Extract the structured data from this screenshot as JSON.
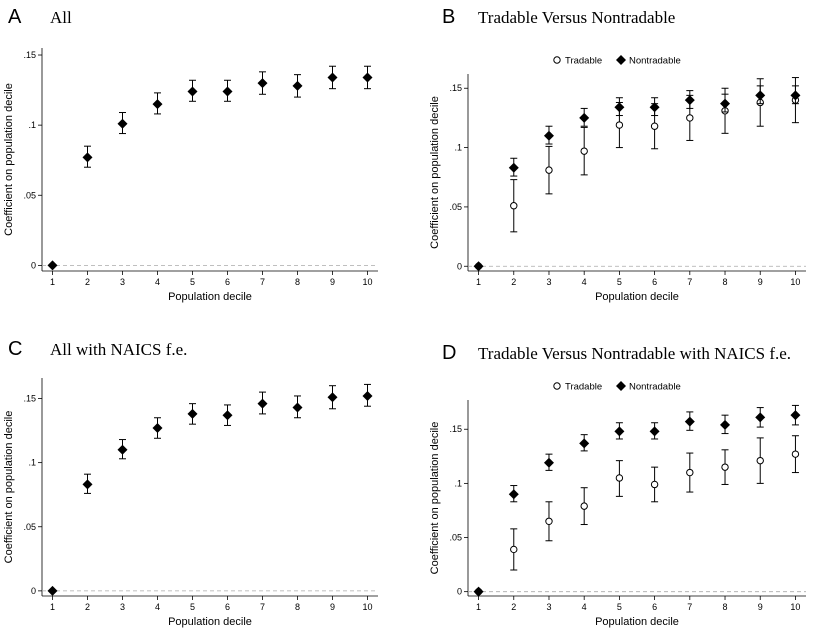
{
  "chart_data": [
    {
      "type": "scatter",
      "panel_letter": "A",
      "title": "All",
      "xlabel": "Population decile",
      "ylabel": "Coefficient on population decile",
      "x": [
        1,
        2,
        3,
        4,
        5,
        6,
        7,
        8,
        9,
        10
      ],
      "xlim": [
        0.7,
        10.3
      ],
      "ylim": [
        -0.004,
        0.155
      ],
      "yticks": [
        0,
        0.05,
        0.1,
        0.15
      ],
      "ytick_labels": [
        "0",
        ".05",
        ".1",
        ".15"
      ],
      "legend": false,
      "series": [
        {
          "marker": "diamond",
          "values": [
            0,
            0.077,
            0.101,
            0.115,
            0.124,
            0.124,
            0.13,
            0.128,
            0.134,
            0.134
          ],
          "lower": [
            0,
            0.07,
            0.094,
            0.108,
            0.117,
            0.117,
            0.122,
            0.12,
            0.126,
            0.126
          ],
          "upper": [
            0,
            0.085,
            0.109,
            0.123,
            0.132,
            0.132,
            0.138,
            0.136,
            0.142,
            0.142
          ]
        }
      ]
    },
    {
      "type": "scatter",
      "panel_letter": "B",
      "title": "Tradable Versus Nontradable",
      "xlabel": "Population decile",
      "ylabel": "Coefficient on population decile",
      "x": [
        1,
        2,
        3,
        4,
        5,
        6,
        7,
        8,
        9,
        10
      ],
      "xlim": [
        0.7,
        10.3
      ],
      "ylim": [
        -0.004,
        0.162
      ],
      "yticks": [
        0,
        0.05,
        0.1,
        0.15
      ],
      "ytick_labels": [
        "0",
        ".05",
        ".1",
        ".15"
      ],
      "legend": "top-center",
      "series": [
        {
          "name": "Tradable",
          "marker": "circle",
          "values": [
            0,
            0.051,
            0.081,
            0.097,
            0.119,
            0.118,
            0.125,
            0.131,
            0.138,
            0.14
          ],
          "lower": [
            0,
            0.029,
            0.061,
            0.077,
            0.1,
            0.099,
            0.106,
            0.112,
            0.118,
            0.121
          ],
          "upper": [
            0,
            0.073,
            0.101,
            0.117,
            0.138,
            0.137,
            0.144,
            0.15,
            0.158,
            0.159
          ]
        },
        {
          "name": "Nontradable",
          "marker": "diamond",
          "values": [
            0,
            0.083,
            0.11,
            0.125,
            0.134,
            0.134,
            0.14,
            0.137,
            0.144,
            0.144
          ],
          "lower": [
            0,
            0.076,
            0.103,
            0.118,
            0.127,
            0.127,
            0.133,
            0.13,
            0.137,
            0.137
          ],
          "upper": [
            0,
            0.091,
            0.118,
            0.133,
            0.142,
            0.142,
            0.148,
            0.145,
            0.152,
            0.152
          ]
        }
      ]
    },
    {
      "type": "scatter",
      "panel_letter": "C",
      "title": "All with NAICS f.e.",
      "xlabel": "Population decile",
      "ylabel": "Coefficient on population decile",
      "x": [
        1,
        2,
        3,
        4,
        5,
        6,
        7,
        8,
        9,
        10
      ],
      "xlim": [
        0.7,
        10.3
      ],
      "ylim": [
        -0.004,
        0.166
      ],
      "yticks": [
        0,
        0.05,
        0.1,
        0.15
      ],
      "ytick_labels": [
        "0",
        ".05",
        ".1",
        ".15"
      ],
      "legend": false,
      "series": [
        {
          "marker": "diamond",
          "values": [
            0,
            0.083,
            0.11,
            0.127,
            0.138,
            0.137,
            0.146,
            0.143,
            0.151,
            0.152
          ],
          "lower": [
            0,
            0.076,
            0.103,
            0.119,
            0.13,
            0.129,
            0.138,
            0.135,
            0.142,
            0.144
          ],
          "upper": [
            0,
            0.091,
            0.118,
            0.135,
            0.146,
            0.145,
            0.155,
            0.152,
            0.16,
            0.161
          ]
        }
      ]
    },
    {
      "type": "scatter",
      "panel_letter": "D",
      "title": "Tradable Versus Nontradable with NAICS f.e.",
      "xlabel": "Population decile",
      "ylabel": "Coefficient on population decile",
      "x": [
        1,
        2,
        3,
        4,
        5,
        6,
        7,
        8,
        9,
        10
      ],
      "xlim": [
        0.7,
        10.3
      ],
      "ylim": [
        -0.004,
        0.177
      ],
      "yticks": [
        0,
        0.05,
        0.1,
        0.15
      ],
      "ytick_labels": [
        "0",
        ".05",
        ".1",
        ".15"
      ],
      "legend": "top-center",
      "series": [
        {
          "name": "Tradable",
          "marker": "circle",
          "values": [
            0,
            0.039,
            0.065,
            0.079,
            0.105,
            0.099,
            0.11,
            0.115,
            0.121,
            0.127
          ],
          "lower": [
            0,
            0.02,
            0.047,
            0.062,
            0.088,
            0.083,
            0.092,
            0.099,
            0.1,
            0.11
          ],
          "upper": [
            0,
            0.058,
            0.083,
            0.096,
            0.121,
            0.115,
            0.128,
            0.131,
            0.142,
            0.144
          ]
        },
        {
          "name": "Nontradable",
          "marker": "diamond",
          "values": [
            0,
            0.09,
            0.119,
            0.137,
            0.148,
            0.148,
            0.157,
            0.154,
            0.161,
            0.163
          ],
          "lower": [
            0,
            0.083,
            0.112,
            0.13,
            0.141,
            0.141,
            0.149,
            0.146,
            0.152,
            0.154
          ],
          "upper": [
            0,
            0.098,
            0.127,
            0.145,
            0.156,
            0.156,
            0.166,
            0.163,
            0.17,
            0.172
          ]
        }
      ]
    }
  ]
}
